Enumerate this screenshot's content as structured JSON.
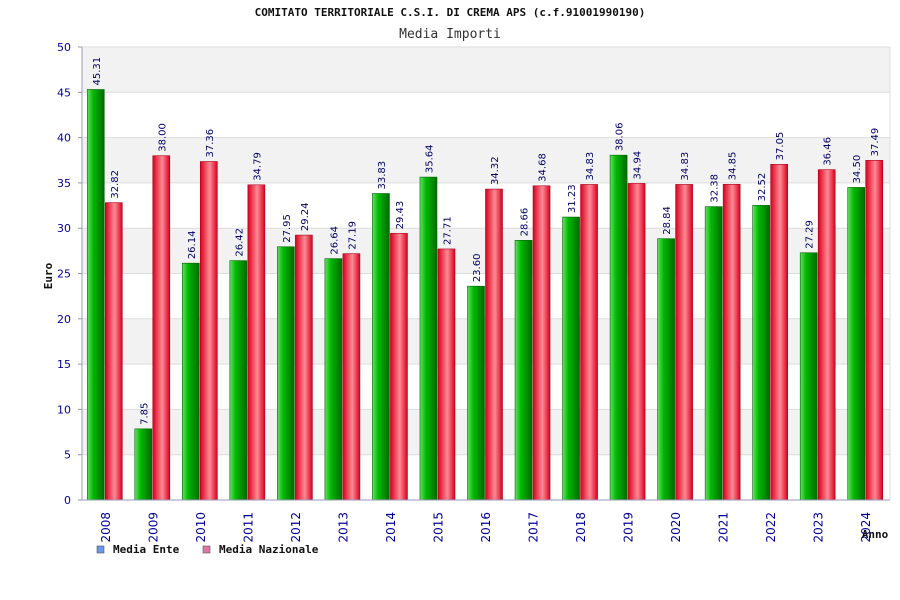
{
  "chart_data": {
    "type": "bar",
    "title": "COMITATO TERRITORIALE C.S.I. DI CREMA APS (c.f.91001990190)",
    "subtitle": "Media Importi",
    "xlabel": "Anno",
    "ylabel": "Euro",
    "ylim": [
      0,
      50
    ],
    "yticks": [
      "0",
      "5",
      "10",
      "15",
      "20",
      "25",
      "30",
      "35",
      "40",
      "45",
      "50"
    ],
    "grid": true,
    "legend_position": "bottom-left",
    "categories": [
      "2008",
      "2009",
      "2010",
      "2011",
      "2012",
      "2013",
      "2014",
      "2015",
      "2016",
      "2017",
      "2018",
      "2019",
      "2020",
      "2021",
      "2022",
      "2023",
      "2024"
    ],
    "series": [
      {
        "name": "Media Ente",
        "color": "#00a000",
        "legend_color": "#6699ee",
        "values": [
          45.31,
          7.85,
          26.14,
          26.42,
          27.95,
          26.64,
          33.83,
          35.64,
          23.6,
          28.66,
          31.23,
          38.06,
          28.84,
          32.38,
          32.52,
          27.29,
          34.5
        ],
        "labels": [
          "45.31",
          "7.85",
          "26.14",
          "26.42",
          "27.95",
          "26.64",
          "33.83",
          "35.64",
          "23.60",
          "28.66",
          "31.23",
          "38.06",
          "28.84",
          "32.38",
          "32.52",
          "27.29",
          "34.50"
        ]
      },
      {
        "name": "Media Nazionale",
        "color": "#e0102a",
        "legend_color": "#dd77aa",
        "values": [
          32.82,
          38.0,
          37.36,
          34.79,
          29.24,
          27.19,
          29.43,
          27.71,
          34.32,
          34.68,
          34.83,
          34.94,
          34.83,
          34.85,
          37.05,
          36.46,
          37.49
        ],
        "labels": [
          "32.82",
          "38.00",
          "37.36",
          "34.79",
          "29.24",
          "27.19",
          "29.43",
          "27.71",
          "34.32",
          "34.68",
          "34.83",
          "34.94",
          "34.83",
          "34.85",
          "37.05",
          "36.46",
          "37.49"
        ]
      }
    ]
  }
}
